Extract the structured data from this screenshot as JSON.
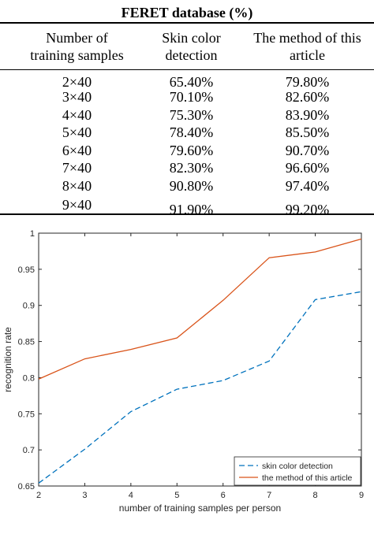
{
  "table": {
    "title_partial": "FERET database (%)",
    "header": [
      "Number of\ntraining samples",
      "Skin color\ndetection",
      "The method of this\narticle"
    ],
    "rows": [
      [
        "2×40",
        "65.40%",
        "79.80%"
      ],
      [
        "3×40",
        "70.10%",
        "82.60%"
      ],
      [
        "4×40",
        "75.30%",
        "83.90%"
      ],
      [
        "5×40",
        "78.40%",
        "85.50%"
      ],
      [
        "6×40",
        "79.60%",
        "90.70%"
      ],
      [
        "7×40",
        "82.30%",
        "96.60%"
      ],
      [
        "8×40",
        "90.80%",
        "97.40%"
      ],
      [
        "9×40",
        "91.90%",
        "99.20%"
      ]
    ]
  },
  "chart_data": {
    "type": "line",
    "xlabel": "number of training samples per person",
    "ylabel": "recognition rate",
    "xlim": [
      2,
      9
    ],
    "ylim": [
      0.65,
      1
    ],
    "xticks": [
      "2",
      "3",
      "4",
      "5",
      "6",
      "7",
      "8",
      "9"
    ],
    "yticks": [
      "0.65",
      "0.7",
      "0.75",
      "0.8",
      "0.85",
      "0.9",
      "0.95",
      "1"
    ],
    "x": [
      2,
      3,
      4,
      5,
      6,
      7,
      8,
      9
    ],
    "grid": false,
    "legend_position": "bottom-right",
    "series": [
      {
        "name": "skin color detection",
        "values": [
          0.654,
          0.701,
          0.753,
          0.784,
          0.796,
          0.823,
          0.908,
          0.919
        ],
        "color": "#0072BD",
        "dash": "dashed"
      },
      {
        "name": "the method of this article",
        "values": [
          0.798,
          0.826,
          0.839,
          0.855,
          0.907,
          0.966,
          0.974,
          0.992
        ],
        "color": "#D95319",
        "dash": "solid"
      }
    ]
  }
}
